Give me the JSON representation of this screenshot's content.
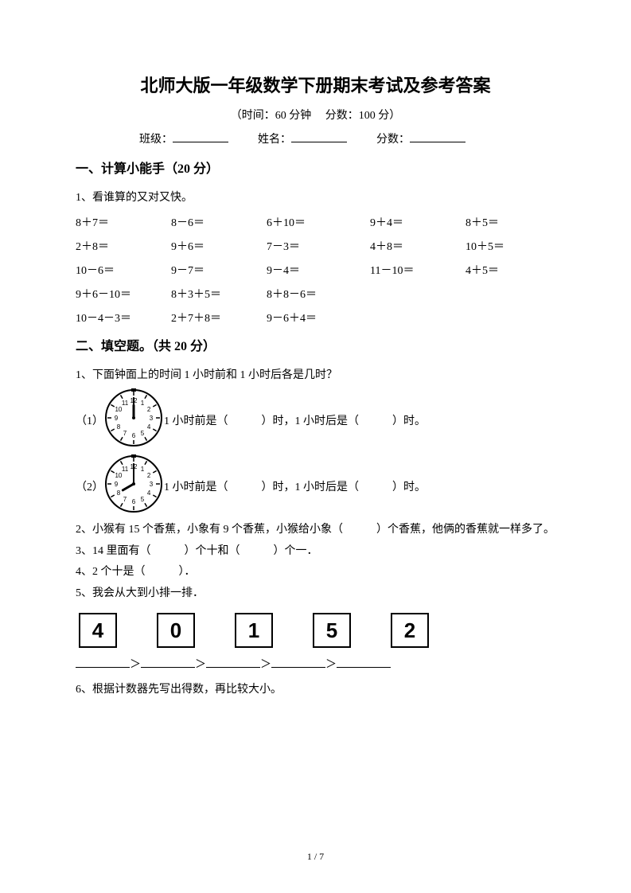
{
  "title": "北师大版一年级数学下册期末考试及参考答案",
  "subtitle": "（时间：60 分钟　 分数：100 分）",
  "info": {
    "class_label": "班级：",
    "name_label": "姓名：",
    "score_label": "分数："
  },
  "sec1": {
    "head": "一、计算小能手（20 分）",
    "q1_label": "1、看谁算的又对又快。",
    "row1": [
      "8＋7＝",
      "8－6＝",
      "6＋10＝",
      "9＋4＝",
      "8＋5＝"
    ],
    "row2": [
      "2＋8＝",
      "9＋6＝",
      "7－3＝",
      "4＋8＝",
      "10＋5＝"
    ],
    "row3": [
      "10－6＝",
      "9－7＝",
      "9－4＝",
      "11－10＝",
      "4＋5＝"
    ],
    "row4": [
      "9＋6－10＝",
      "8＋3＋5＝",
      "8＋8－6＝"
    ],
    "row5": [
      "10－4－3＝",
      "2＋7＋8＝",
      "9－6＋4＝"
    ]
  },
  "sec2": {
    "head": "二、填空题。（共 20 分）",
    "q1": "1、下面钟面上的时间 1 小时前和 1 小时后各是几时？",
    "clock1_label": "（1）",
    "clock1_text": "1 小时前是（　　　）时，1 小时后是（　　　）时。",
    "clock1": {
      "hour": 12,
      "minute": 0
    },
    "clock2_label": "（2）",
    "clock2_text": "1 小时前是（　　　）时，1 小时后是（　　　）时。",
    "clock2": {
      "hour": 8,
      "minute": 0
    },
    "q2": "2、小猴有 15 个香蕉，小象有 9 个香蕉，小猴给小象（　　　）个香蕉，他俩的香蕉就一样多了。",
    "q3": "3、14 里面有（　　　）个十和（　　　）个一．",
    "q4": "4、2 个十是（　　　）．",
    "q5": "5、我会从大到小排一排．",
    "boxes": [
      "4",
      "0",
      "1",
      "5",
      "2"
    ],
    "gt": "＞",
    "q6": "6、根据计数器先写出得数，再比较大小。"
  },
  "footer": "1 / 7",
  "style": {
    "clock_size": 76,
    "clock_stroke": "#000000",
    "clock_bg": "#ffffff",
    "text_color": "#000000"
  }
}
